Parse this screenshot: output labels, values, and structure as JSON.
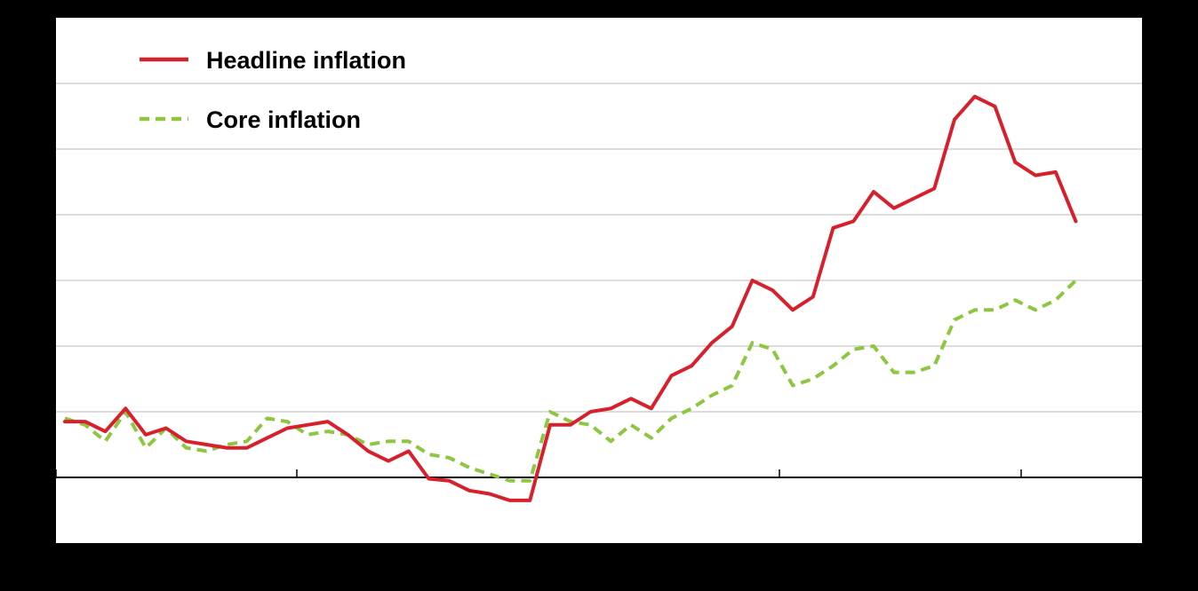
{
  "chart_data": {
    "type": "line",
    "title": "",
    "xlabel": "",
    "ylabel": "",
    "ylim": [
      -1,
      7
    ],
    "x_count": 51,
    "grid": "horizontal",
    "legend_position": "top-left",
    "background_color": "#000000",
    "plot_background_color": "#ffffff",
    "series": [
      {
        "name": "Headline inflation",
        "color": "#d7202b",
        "style": "solid",
        "values": [
          0.85,
          0.85,
          0.7,
          1.05,
          0.65,
          0.75,
          0.55,
          0.5,
          0.45,
          0.45,
          0.6,
          0.75,
          0.8,
          0.85,
          0.65,
          0.4,
          0.25,
          0.4,
          -0.02,
          -0.05,
          -0.2,
          -0.25,
          -0.35,
          -0.35,
          0.8,
          0.8,
          1.0,
          1.05,
          1.2,
          1.05,
          1.55,
          1.7,
          2.05,
          2.3,
          3.0,
          2.85,
          2.55,
          2.75,
          3.8,
          3.9,
          4.35,
          4.1,
          4.25,
          4.4,
          5.45,
          5.8,
          5.65,
          4.8,
          4.6,
          4.65,
          3.9
        ]
      },
      {
        "name": "Core inflation",
        "color": "#8dc63f",
        "style": "dashed",
        "values": [
          0.9,
          0.8,
          0.55,
          1.0,
          0.45,
          0.75,
          0.45,
          0.4,
          0.5,
          0.55,
          0.9,
          0.85,
          0.65,
          0.7,
          0.65,
          0.5,
          0.55,
          0.55,
          0.35,
          0.3,
          0.15,
          0.05,
          -0.05,
          -0.05,
          1.0,
          0.85,
          0.8,
          0.55,
          0.8,
          0.6,
          0.9,
          1.05,
          1.25,
          1.4,
          2.05,
          1.95,
          1.4,
          1.5,
          1.7,
          1.95,
          2.0,
          1.6,
          1.6,
          1.7,
          2.4,
          2.55,
          2.55,
          2.7,
          2.55,
          2.7,
          3.0
        ]
      }
    ]
  }
}
